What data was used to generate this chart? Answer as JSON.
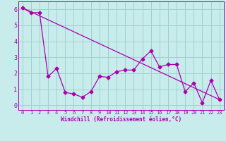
{
  "xlabel": "Windchill (Refroidissement éolien,°C)",
  "ylabel": "",
  "background_color": "#c8ecec",
  "grid_color": "#a0d0d0",
  "line_color": "#aa00aa",
  "xlim": [
    -0.5,
    23.5
  ],
  "ylim": [
    -0.3,
    6.5
  ],
  "xticks": [
    0,
    1,
    2,
    3,
    4,
    5,
    6,
    7,
    8,
    9,
    10,
    11,
    12,
    13,
    14,
    15,
    16,
    17,
    18,
    19,
    20,
    21,
    22,
    23
  ],
  "yticks": [
    0,
    1,
    2,
    3,
    4,
    5,
    6
  ],
  "line1_x": [
    0,
    1,
    2,
    3,
    4,
    5,
    6,
    7,
    8,
    9,
    10,
    11,
    12,
    13,
    14,
    15,
    16,
    17,
    18,
    19,
    20,
    21,
    22,
    23
  ],
  "line1_y": [
    6.1,
    5.8,
    5.8,
    1.8,
    2.3,
    0.8,
    0.7,
    0.5,
    0.85,
    1.8,
    1.75,
    2.1,
    2.2,
    2.2,
    2.9,
    3.4,
    2.4,
    2.55,
    2.55,
    0.85,
    1.4,
    0.15,
    1.55,
    0.35
  ],
  "line2_x": [
    0,
    23
  ],
  "line2_y": [
    6.1,
    0.35
  ],
  "marker": "D",
  "markersize": 2.5,
  "linewidth": 0.9
}
